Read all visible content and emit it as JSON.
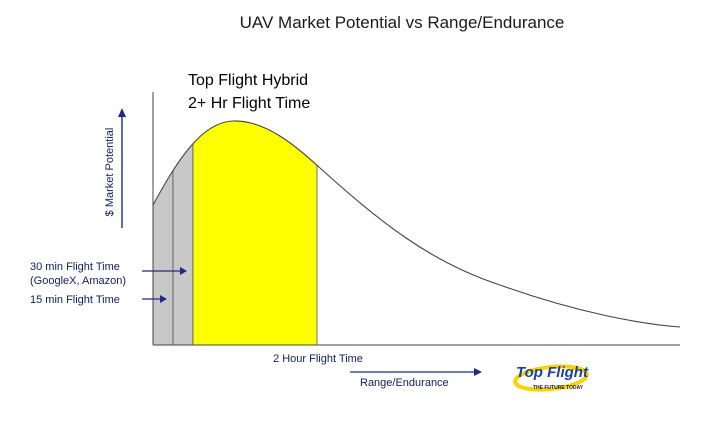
{
  "title": "UAV Market Potential vs Range/Endurance",
  "highlight": {
    "line1": "Top Flight Hybrid",
    "line2": "2+ Hr Flight Time"
  },
  "y_axis_label": "$ Market Potential",
  "x_axis_label": "Range/Endurance",
  "callouts": {
    "thirty_min_line1": "30 min Flight Time",
    "thirty_min_line2": "(GoogleX, Amazon)",
    "fifteen_min": "15 min Flight Time",
    "two_hour": "2 Hour Flight Time"
  },
  "logo": {
    "name": "Top Flight",
    "tagline": "THE FUTURE TODAY"
  },
  "colors": {
    "curve": "#444444",
    "axis": "#1f2a8a",
    "gray_region": "#c8c8c8",
    "yellow_region": "#ffff00",
    "logo_blue": "#1c3fa0",
    "logo_yellow": "#f5d400"
  }
}
